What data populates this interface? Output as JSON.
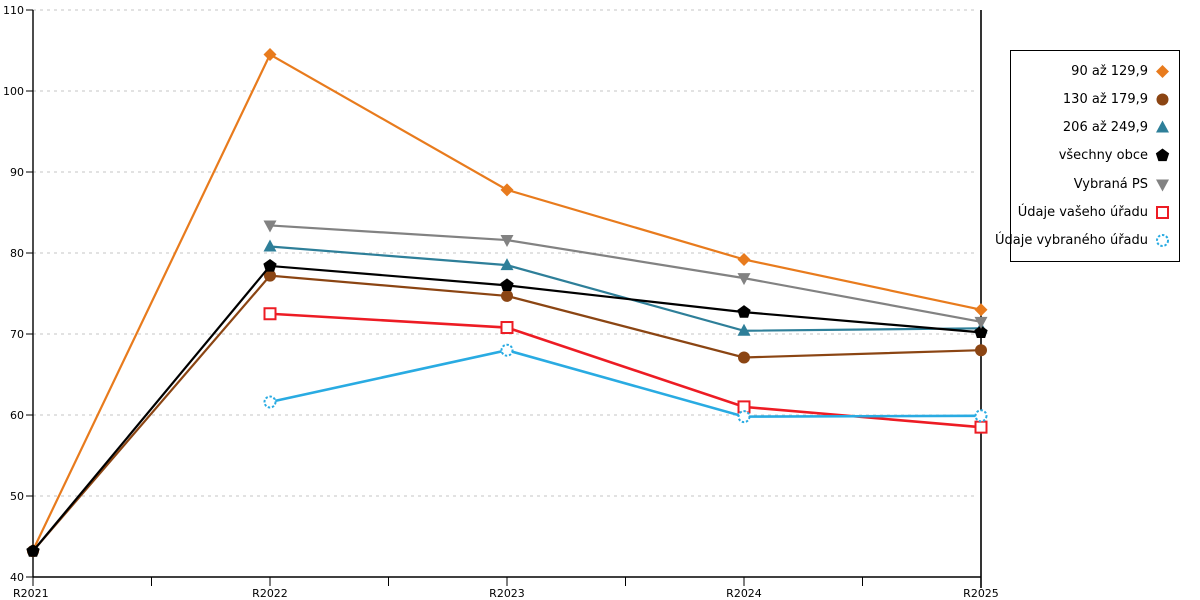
{
  "chart_data": {
    "type": "line",
    "categories": [
      "R2021",
      "R2022",
      "R2023",
      "R2024",
      "R2025"
    ],
    "series": [
      {
        "name": "90 až 129,9",
        "color": "#e87b1d",
        "marker": "diamond",
        "values": [
          43.3,
          104.5,
          87.8,
          79.2,
          73.0
        ]
      },
      {
        "name": "130 až 179,9",
        "color": "#8b4513",
        "marker": "circle",
        "values": [
          43.2,
          77.2,
          74.7,
          67.1,
          68.0
        ]
      },
      {
        "name": "206 až 249,9",
        "color": "#2e7f99",
        "marker": "triangle-up",
        "values": [
          null,
          80.8,
          78.5,
          70.4,
          70.7
        ]
      },
      {
        "name": "všechny obce",
        "color": "#000000",
        "marker": "pentagon",
        "values": [
          43.2,
          78.4,
          76.0,
          72.7,
          70.2
        ]
      },
      {
        "name": "Vybraná PS",
        "color": "#828282",
        "marker": "triangle-down",
        "values": [
          null,
          83.4,
          81.6,
          76.9,
          71.5
        ]
      },
      {
        "name": "Údaje vašeho úřadu",
        "color": "#ed1c24",
        "marker": "open-square",
        "values": [
          null,
          72.5,
          70.8,
          61.0,
          58.5
        ]
      },
      {
        "name": "Údaje vybraného úřadu",
        "color": "#29abe2",
        "marker": "open-circle",
        "values": [
          null,
          61.6,
          68.0,
          59.8,
          59.9
        ]
      }
    ],
    "title": "",
    "xlabel": "",
    "ylabel": "",
    "ylim": [
      40,
      110
    ],
    "yticks": [
      40,
      50,
      60,
      70,
      80,
      90,
      100,
      110
    ],
    "grid": "horizontal-dashed",
    "gridline_color": "#c6c6c6",
    "axis_color": "#000000",
    "legend_position": "right"
  }
}
